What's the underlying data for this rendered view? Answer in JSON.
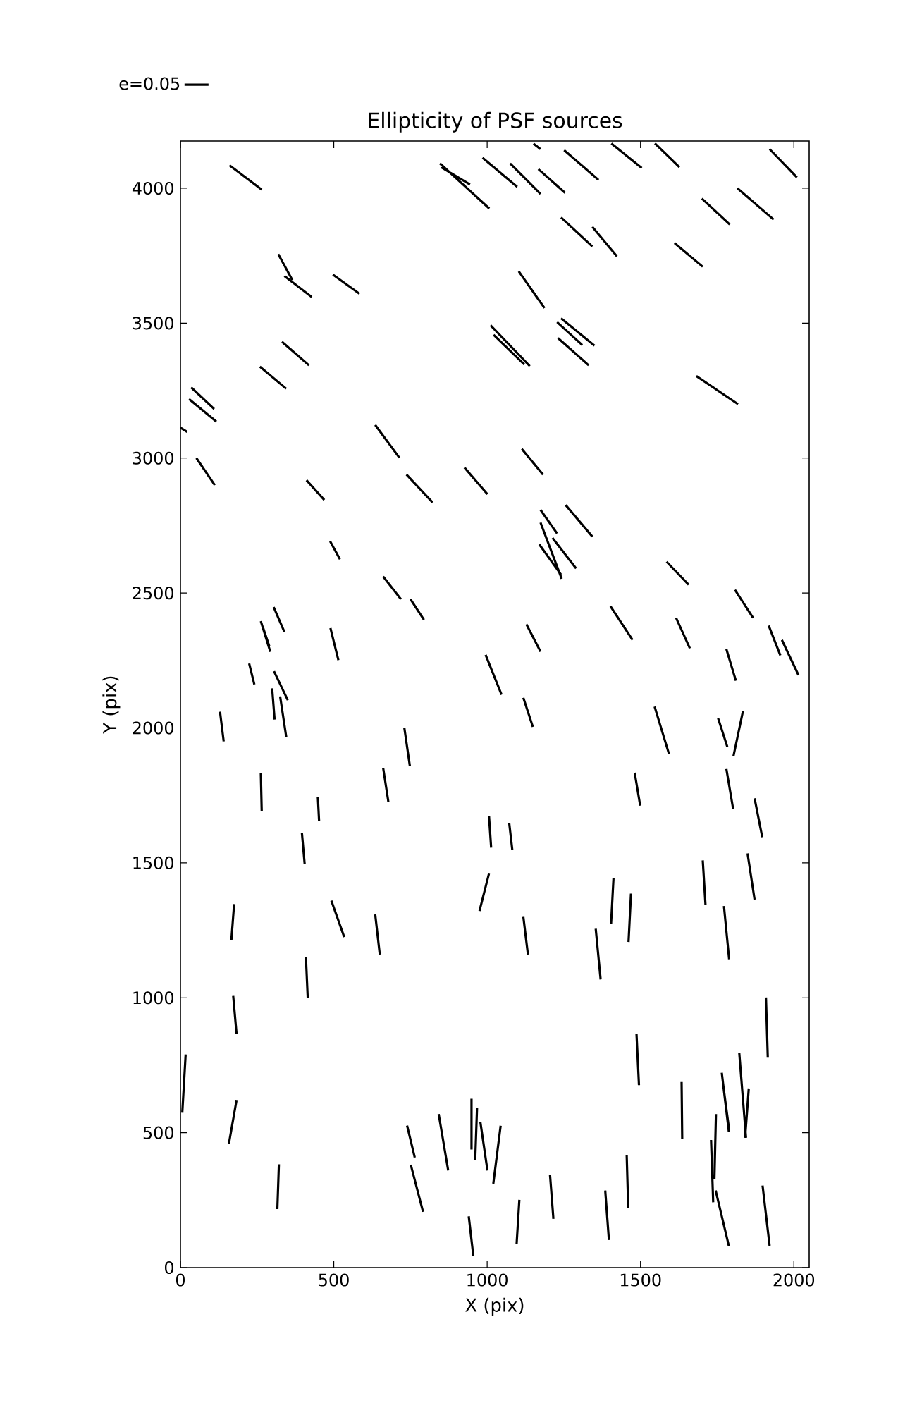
{
  "chart_data": {
    "type": "line",
    "title": "Ellipticity of PSF sources",
    "xlabel": "X (pix)",
    "ylabel": "Y (pix)",
    "xlim": [
      0,
      2050
    ],
    "ylim": [
      0,
      4175
    ],
    "xticks": [
      0,
      500,
      1000,
      1500,
      2000
    ],
    "yticks": [
      0,
      500,
      1000,
      1500,
      2000,
      2500,
      3000,
      3500,
      4000
    ],
    "legend": "top left",
    "series": [
      {
        "name": "e=0.05",
        "color": "#000000",
        "x": [
          160,
          265,
          null,
          846,
          1007,
          null,
          850,
          944,
          null,
          985,
          1098,
          null,
          1075,
          1174,
          null,
          1167,
          1254,
          null,
          1151,
          1174,
          null,
          1251,
          1363,
          null,
          1405,
          1504,
          null,
          1547,
          1627,
          null,
          1921,
          2010,
          null,
          1700,
          1791,
          null,
          1816,
          1934,
          null,
          1241,
          1343,
          null,
          1343,
          1423,
          null,
          1611,
          1703,
          null,
          1103,
          1187,
          null,
          1011,
          1139,
          null,
          1021,
          1121,
          null,
          1228,
          1310,
          null,
          1241,
          1350,
          null,
          1231,
          1331,
          null,
          1682,
          1818,
          null,
          1113,
          1182,
          null,
          319,
          365,
          null,
          339,
          428,
          null,
          497,
          584,
          null,
          331,
          419,
          null,
          259,
          345,
          null,
          35,
          110,
          null,
          28,
          117,
          null,
          0,
          22,
          null,
          52,
          112,
          null,
          635,
          714,
          null,
          411,
          469,
          null,
          737,
          822,
          null,
          926,
          1001,
          null,
          488,
          520,
          null,
          661,
          719,
          null,
          750,
          794,
          null,
          262,
          293,
          null,
          270,
          290,
          null,
          304,
          339,
          null,
          489,
          515,
          null,
          224,
          241,
          null,
          305,
          350,
          null,
          299,
          307,
          null,
          325,
          345,
          null,
          129,
          141,
          null,
          995,
          1047,
          null,
          730,
          748,
          null,
          262,
          265,
          null,
          661,
          678,
          null,
          448,
          452,
          null,
          396,
          405,
          null,
          1006,
          1013,
          null,
          975,
          1006,
          null,
          492,
          534,
          null,
          1174,
          1228,
          null,
          1256,
          1343,
          null,
          1174,
          1243,
          null,
          1170,
          1241,
          null,
          1213,
          1290,
          null,
          1585,
          1657,
          null,
          1808,
          1867,
          null,
          1402,
          1474,
          null,
          1128,
          1174,
          null,
          1616,
          1661,
          null,
          1918,
          1956,
          null,
          1961,
          2015,
          null,
          1780,
          1811,
          null,
          1118,
          1149,
          null,
          1546,
          1593,
          null,
          1753,
          1783,
          null,
          1803,
          1834,
          null,
          1481,
          1499,
          null,
          1780,
          1802,
          null,
          1872,
          1897,
          null,
          1072,
          1082,
          null,
          1404,
          1412,
          null,
          1469,
          1461,
          null,
          1703,
          1712,
          null,
          1849,
          1872,
          null,
          1772,
          1789,
          null,
          1118,
          1133,
          null,
          1354,
          1370,
          null,
          1909,
          1915,
          null,
          1487,
          1495,
          null,
          1634,
          1636,
          null,
          1765,
          1788,
          null,
          1769,
          1789,
          null,
          1822,
          1844,
          null,
          1853,
          1841,
          null,
          1746,
          1741,
          null,
          1730,
          1737,
          null,
          1745,
          1788,
          null,
          1898,
          1921,
          null,
          1455,
          1460,
          null,
          1385,
          1397,
          null,
          1205,
          1216,
          null,
          1105,
          1096,
          null,
          1044,
          1020,
          null,
          175,
          166,
          null,
          635,
          650,
          null,
          409,
          415,
          null,
          172,
          183,
          null,
          17,
          6,
          null,
          183,
          158,
          null,
          321,
          316,
          null,
          739,
          764,
          null,
          751,
          791,
          null,
          842,
          873,
          null,
          949,
          949,
          null,
          967,
          961,
          null,
          978,
          1001,
          null,
          940,
          955
        ],
        "values": [
          4085,
          3995,
          null,
          4092,
          3925,
          null,
          4078,
          4014,
          null,
          4113,
          4005,
          null,
          4092,
          3979,
          null,
          4071,
          3983,
          null,
          4165,
          4145,
          null,
          4141,
          4031,
          null,
          4166,
          4075,
          null,
          4166,
          4078,
          null,
          4145,
          4040,
          null,
          3962,
          3866,
          null,
          4000,
          3884,
          null,
          3892,
          3784,
          null,
          3857,
          3748,
          null,
          3797,
          3709,
          null,
          3692,
          3556,
          null,
          3492,
          3341,
          null,
          3457,
          3347,
          null,
          3504,
          3419,
          null,
          3518,
          3417,
          null,
          3445,
          3344,
          null,
          3304,
          3200,
          null,
          3034,
          2939,
          null,
          3756,
          3660,
          null,
          3675,
          3597,
          null,
          3680,
          3609,
          null,
          3431,
          3344,
          null,
          3339,
          3257,
          null,
          3262,
          3182,
          null,
          3219,
          3135,
          null,
          3113,
          3097,
          null,
          3000,
          2900,
          null,
          3123,
          3001,
          null,
          2918,
          2845,
          null,
          2939,
          2836,
          null,
          2965,
          2866,
          null,
          2692,
          2625,
          null,
          2561,
          2477,
          null,
          2477,
          2401,
          null,
          2396,
          2282,
          null,
          2370,
          2302,
          null,
          2448,
          2356,
          null,
          2370,
          2251,
          null,
          2239,
          2161,
          null,
          2210,
          2103,
          null,
          2147,
          2031,
          null,
          2117,
          1966,
          null,
          2060,
          1950,
          null,
          2271,
          2123,
          null,
          2000,
          1859,
          null,
          1834,
          1691,
          null,
          1851,
          1726,
          null,
          1743,
          1656,
          null,
          1611,
          1496,
          null,
          1674,
          1556,
          null,
          1322,
          1460,
          null,
          1360,
          1225,
          null,
          2808,
          2721,
          null,
          2826,
          2709,
          null,
          2761,
          2553,
          null,
          2680,
          2568,
          null,
          2704,
          2591,
          null,
          2616,
          2531,
          null,
          2512,
          2408,
          null,
          2451,
          2326,
          null,
          2384,
          2283,
          null,
          2408,
          2295,
          null,
          2379,
          2269,
          null,
          2326,
          2196,
          null,
          2292,
          2175,
          null,
          2112,
          2004,
          null,
          2079,
          1903,
          null,
          2036,
          1930,
          null,
          1895,
          2062,
          null,
          1834,
          1712,
          null,
          1848,
          1700,
          null,
          1739,
          1595,
          null,
          1647,
          1548,
          null,
          1273,
          1444,
          null,
          1386,
          1207,
          null,
          1509,
          1343,
          null,
          1535,
          1364,
          null,
          1340,
          1143,
          null,
          1300,
          1160,
          null,
          1256,
          1068,
          null,
          1001,
          778,
          null,
          865,
          676,
          null,
          688,
          478,
          null,
          722,
          504,
          null,
          682,
          511,
          null,
          795,
          481,
          null,
          664,
          481,
          null,
          569,
          329,
          null,
          473,
          242,
          null,
          286,
          81,
          null,
          304,
          81,
          null,
          416,
          221,
          null,
          286,
          102,
          null,
          343,
          181,
          null,
          251,
          87,
          null,
          526,
          311,
          null,
          1347,
          1213,
          null,
          1309,
          1160,
          null,
          1152,
          1000,
          null,
          1007,
          865,
          null,
          790,
          574,
          null,
          621,
          459,
          null,
          383,
          217,
          null,
          526,
          408,
          null,
          381,
          207,
          null,
          569,
          360,
          null,
          626,
          438,
          null,
          591,
          398,
          null,
          539,
          360,
          null,
          190,
          43
        ]
      }
    ]
  }
}
